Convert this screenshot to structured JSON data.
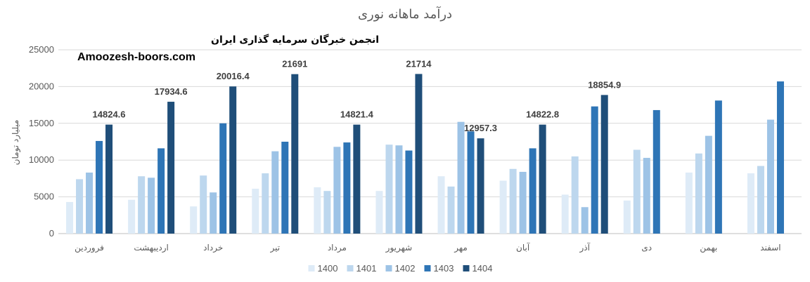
{
  "chart_data": {
    "type": "bar",
    "title": "درآمد ماهانه نوری",
    "ylabel": "میلیارد تومان",
    "ylim": [
      0,
      25000
    ],
    "yticks": [
      0,
      5000,
      10000,
      15000,
      20000,
      25000
    ],
    "grid": true,
    "legend_position": "bottom",
    "categories": [
      "فروردین",
      "اردیبهشت",
      "خرداد",
      "تیر",
      "مرداد",
      "شهریور",
      "مهر",
      "آبان",
      "آذر",
      "دی",
      "بهمن",
      "اسفند"
    ],
    "series": [
      {
        "name": "1400",
        "color": "#DEEBF7",
        "values": [
          4300,
          4600,
          3700,
          6100,
          6300,
          5800,
          7800,
          7200,
          5300,
          4500,
          8300,
          8200
        ]
      },
      {
        "name": "1401",
        "color": "#BDD7EE",
        "values": [
          7400,
          7800,
          7900,
          8200,
          5800,
          12100,
          6400,
          8800,
          10500,
          11400,
          10900,
          9200
        ]
      },
      {
        "name": "1402",
        "color": "#9DC3E6",
        "values": [
          8300,
          7600,
          5600,
          11200,
          11800,
          12000,
          15200,
          8400,
          3600,
          10300,
          13300,
          15500
        ]
      },
      {
        "name": "1403",
        "color": "#2E75B6",
        "values": [
          12600,
          11600,
          15000,
          12500,
          12400,
          11300,
          13900,
          11600,
          17300,
          16800,
          18100,
          20700
        ]
      },
      {
        "name": "1404",
        "color": "#1F4E79",
        "values": [
          14824.6,
          17934.6,
          20016.4,
          21691,
          14821.4,
          21714,
          12957.3,
          14822.8,
          18854.9,
          null,
          null,
          null
        ]
      }
    ],
    "data_labels": [
      "14824.6",
      "17934.6",
      "20016.4",
      "21691",
      "14821.4",
      "21714",
      "12957.3",
      "14822.8",
      "18854.9",
      "",
      "",
      ""
    ]
  },
  "watermark": {
    "line1": "انجمن خبرگان سرمایه گذاری ایران",
    "line2": "Amoozesh-boors.com"
  }
}
